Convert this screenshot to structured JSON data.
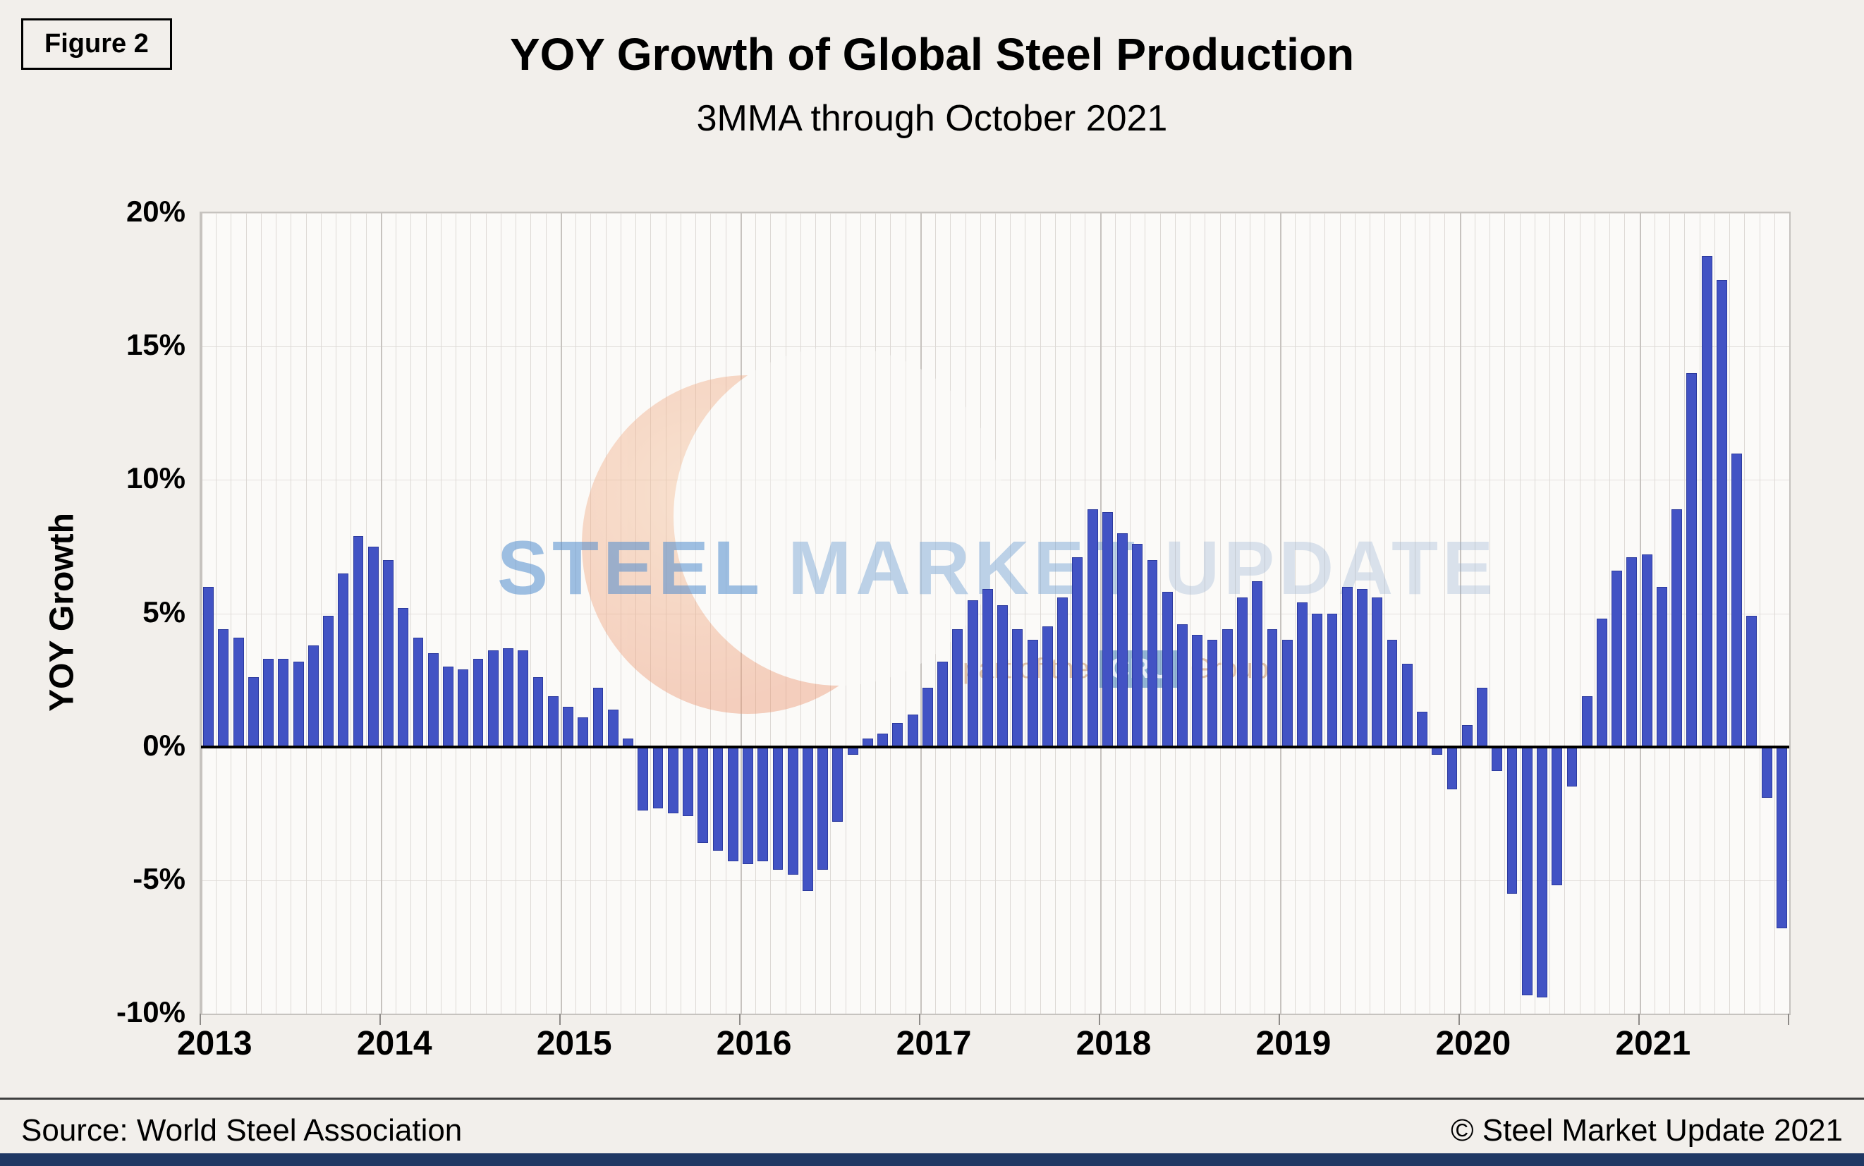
{
  "figure_label": "Figure 2",
  "header": {
    "title": "YOY Growth of Global Steel Production",
    "subtitle": "3MMA through October 2021"
  },
  "footer": {
    "source": "Source: World Steel Association",
    "copyright": "© Steel Market Update 2021"
  },
  "watermark": {
    "word1": "STEEL",
    "word2": "MARKET",
    "word3": "UPDATE",
    "tagline_prefix": "part of the",
    "cru": "CRU",
    "tagline_suffix": "Group"
  },
  "colors": {
    "bar_fill": "#4253c4",
    "bar_border": "#2c3a9e",
    "zero_line": "#000000",
    "grid": "#ddd9d5",
    "page_background": "#f2efeb",
    "bottom_strip": "#203864"
  },
  "chart_data": {
    "type": "bar",
    "title": "YOY Growth of Global Steel Production",
    "subtitle": "3MMA through October 2021",
    "xlabel": "",
    "ylabel": "YOY Growth",
    "ylim": [
      -10,
      20
    ],
    "yticks": [
      20,
      15,
      10,
      5,
      0,
      -5,
      -10
    ],
    "ytick_labels": [
      "20%",
      "15%",
      "10%",
      "5%",
      "0%",
      "-5%",
      "-10%"
    ],
    "x_year_labels": [
      "2013",
      "2014",
      "2015",
      "2016",
      "2017",
      "2018",
      "2019",
      "2020",
      "2021"
    ],
    "frequency": "monthly",
    "start": "2013-01",
    "end": "2021-10",
    "grid": true,
    "legend": "none",
    "values": [
      6.0,
      4.4,
      4.1,
      2.6,
      3.3,
      3.3,
      3.2,
      3.8,
      4.9,
      6.5,
      7.9,
      7.5,
      7.0,
      5.2,
      4.1,
      3.5,
      3.0,
      2.9,
      3.3,
      3.6,
      3.7,
      3.6,
      2.6,
      1.9,
      1.5,
      1.1,
      2.2,
      1.4,
      0.3,
      -2.4,
      -2.3,
      -2.5,
      -2.6,
      -3.6,
      -3.9,
      -4.3,
      -4.4,
      -4.3,
      -4.6,
      -4.8,
      -5.4,
      -4.6,
      -2.8,
      -0.3,
      0.3,
      0.5,
      0.9,
      1.2,
      2.2,
      3.2,
      4.4,
      5.5,
      5.9,
      5.3,
      4.4,
      4.0,
      4.5,
      5.6,
      7.1,
      8.9,
      8.8,
      8.0,
      7.6,
      7.0,
      5.8,
      4.6,
      4.2,
      4.0,
      4.4,
      5.6,
      6.2,
      4.4,
      4.0,
      5.4,
      5.0,
      5.0,
      6.0,
      5.9,
      5.6,
      4.0,
      3.1,
      1.3,
      -0.3,
      -1.6,
      0.8,
      2.2,
      -0.9,
      -5.5,
      -9.3,
      -9.4,
      -5.2,
      -1.5,
      1.9,
      4.8,
      6.6,
      7.1,
      7.2,
      6.0,
      8.9,
      14.0,
      18.4,
      17.5,
      11.0,
      4.9,
      -1.9,
      -6.8
    ]
  }
}
